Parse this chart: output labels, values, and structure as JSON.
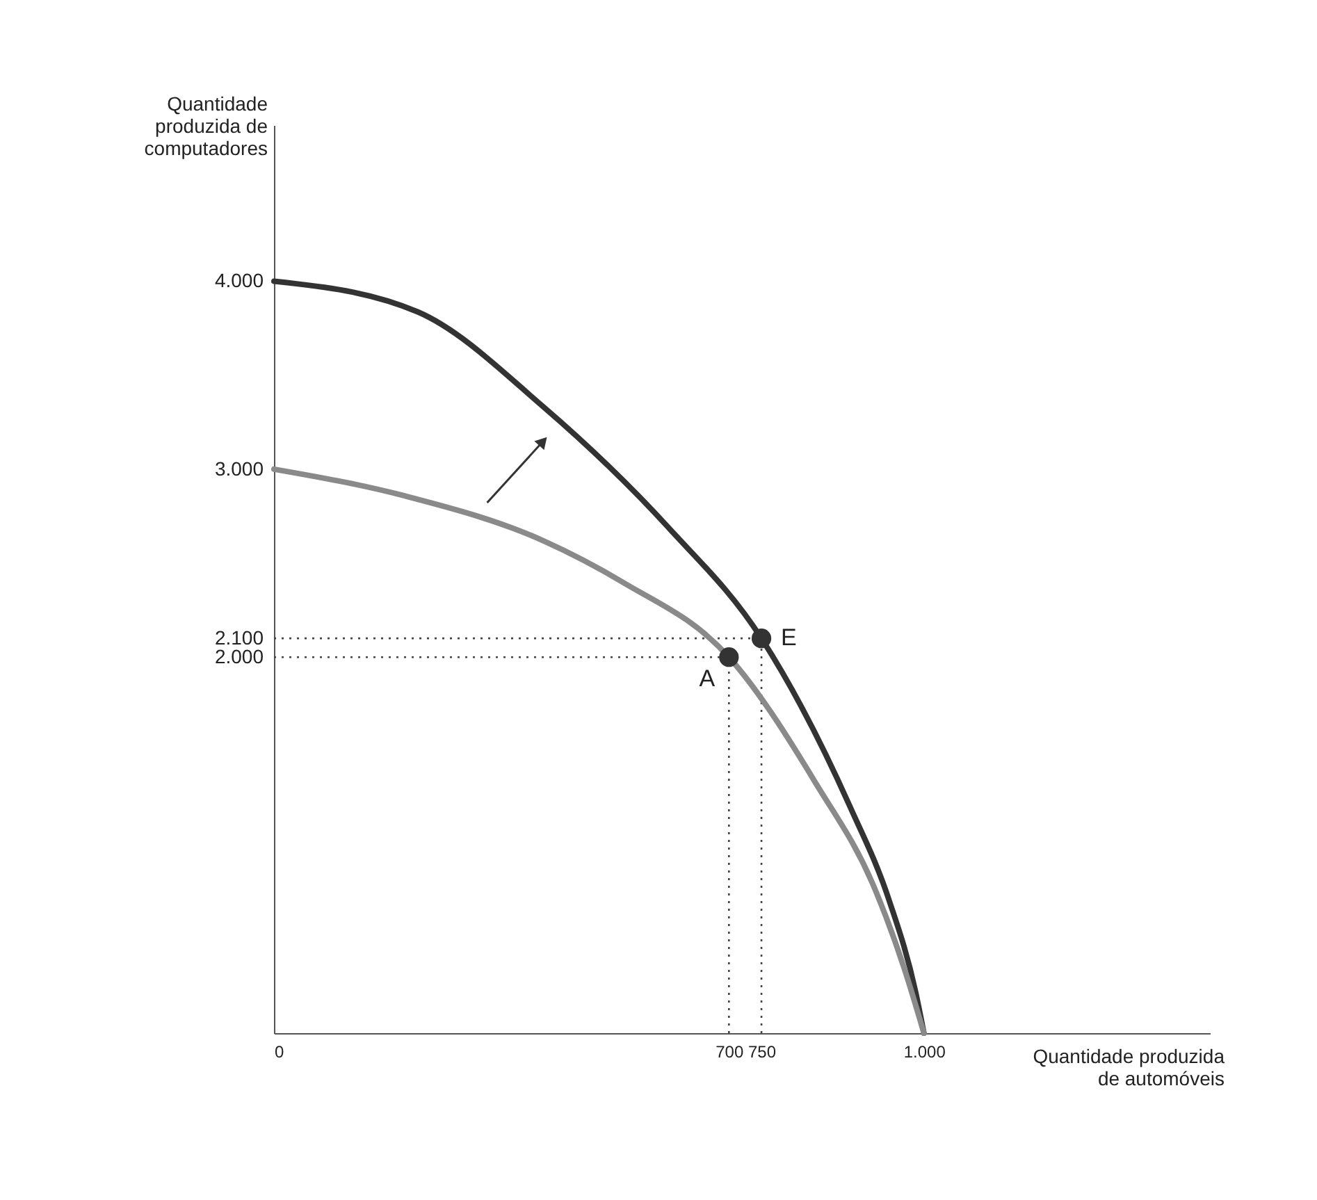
{
  "chart_data": {
    "type": "line",
    "xlabel": "Quantidade produzida\nde automóveis",
    "ylabel": "Quantidade\nproduzida de\ncomputadores",
    "xlim": [
      0,
      1440
    ],
    "ylim": [
      0,
      4830
    ],
    "xticks": [
      0,
      700,
      750,
      {
        "value": 1000,
        "label": "1.000"
      }
    ],
    "yticks": [
      {
        "value": 2000,
        "label": "2.000"
      },
      {
        "value": 2100,
        "label": "2.100"
      },
      {
        "value": 3000,
        "label": "3.000"
      },
      {
        "value": 4000,
        "label": "4.000"
      }
    ],
    "grid": false,
    "legend": false,
    "series": [
      {
        "color": "#333333",
        "x": [
          0,
          221,
          414,
          607,
          750,
          886,
          946,
          987,
          1000
        ],
        "values": [
          4000,
          3837,
          3333,
          2689,
          2100,
          1207,
          711,
          222,
          0
        ]
      },
      {
        "color": "#8a8a8a",
        "x": [
          0,
          200,
          414,
          536,
          700,
          833,
          925,
          970,
          1000
        ],
        "values": [
          3000,
          2859,
          2620,
          2400,
          2000,
          1333,
          763,
          341,
          0
        ]
      },
      {
        "type": "line",
        "color": "#333333",
        "marker": "triangle",
        "x": [
          328,
          414
        ],
        "values": [
          2822,
          3148
        ]
      },
      {
        "type": "scatter",
        "name": "E",
        "color": "#333333",
        "x": [
          750
        ],
        "values": [
          2100
        ]
      },
      {
        "type": "scatter",
        "name": "A",
        "color": "#333333",
        "x": [
          700
        ],
        "values": [
          2000
        ]
      }
    ],
    "ref_lines": [
      {
        "axis": "y",
        "value": 2100,
        "line_style": "dotted"
      },
      {
        "axis": "y",
        "value": 2000,
        "line_style": "dotted"
      },
      {
        "axis": "x",
        "value": 750,
        "line_style": "dotted"
      },
      {
        "axis": "x",
        "value": 700,
        "line_style": "dotted"
      }
    ]
  }
}
